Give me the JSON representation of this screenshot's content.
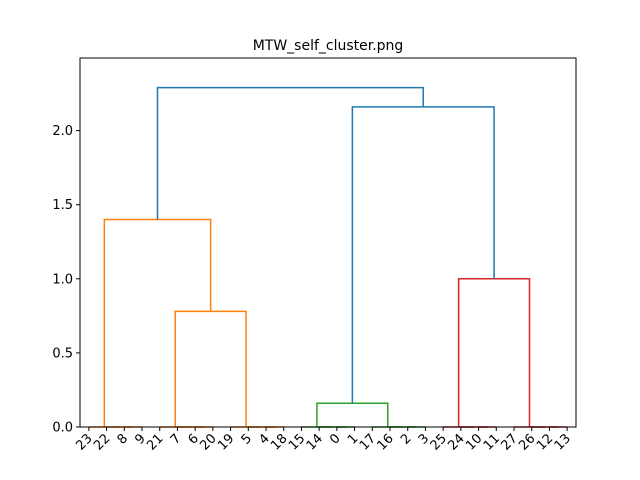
{
  "chart_data": {
    "type": "dendrogram",
    "title": "MTW_self_cluster.png",
    "ylim": [
      0,
      2.49
    ],
    "yticks": [
      {
        "value": 0,
        "label": "0.0"
      },
      {
        "value": 0.5,
        "label": "0.5"
      },
      {
        "value": 1,
        "label": "1.0"
      },
      {
        "value": 1.5,
        "label": "1.5"
      },
      {
        "value": 2,
        "label": "2.0"
      }
    ],
    "tree": {
      "height": 2.29,
      "color": "#1f77b4",
      "children": [
        {
          "height": 1.4,
          "color": "#ff7f0e",
          "children": [
            {
              "height": 0,
              "color": "#ff7f0e",
              "children": [
                {
                  "label": "23"
                },
                {
                  "height": 0,
                  "color": "#ff7f0e",
                  "children": [
                    {
                      "label": "22"
                    },
                    {
                      "height": 0,
                      "color": "#ff7f0e",
                      "children": [
                        {
                          "label": "8"
                        },
                        {
                          "label": "9"
                        }
                      ]
                    }
                  ]
                }
              ]
            },
            {
              "height": 0.78,
              "color": "#ff7f0e",
              "children": [
                {
                  "height": 0,
                  "color": "#ff7f0e",
                  "children": [
                    {
                      "label": "21"
                    },
                    {
                      "height": 0,
                      "color": "#ff7f0e",
                      "children": [
                        {
                          "label": "7"
                        },
                        {
                          "height": 0,
                          "color": "#ff7f0e",
                          "children": [
                            {
                              "label": "6"
                            },
                            {
                              "label": "20"
                            }
                          ]
                        }
                      ]
                    }
                  ]
                },
                {
                  "height": 0,
                  "color": "#ff7f0e",
                  "children": [
                    {
                      "label": "19"
                    },
                    {
                      "height": 0,
                      "color": "#ff7f0e",
                      "children": [
                        {
                          "label": "5"
                        },
                        {
                          "height": 0,
                          "color": "#ff7f0e",
                          "children": [
                            {
                              "label": "4"
                            },
                            {
                              "label": "18"
                            }
                          ]
                        }
                      ]
                    }
                  ]
                }
              ]
            }
          ]
        },
        {
          "height": 2.16,
          "color": "#1f77b4",
          "children": [
            {
              "height": 0.16,
              "color": "#2ca02c",
              "children": [
                {
                  "height": 0,
                  "color": "#2ca02c",
                  "children": [
                    {
                      "label": "15"
                    },
                    {
                      "height": 0,
                      "color": "#2ca02c",
                      "children": [
                        {
                          "label": "14"
                        },
                        {
                          "height": 0,
                          "color": "#2ca02c",
                          "children": [
                            {
                              "label": "0"
                            },
                            {
                              "label": "1"
                            }
                          ]
                        }
                      ]
                    }
                  ]
                },
                {
                  "height": 0,
                  "color": "#2ca02c",
                  "children": [
                    {
                      "label": "17"
                    },
                    {
                      "height": 0,
                      "color": "#2ca02c",
                      "children": [
                        {
                          "label": "16"
                        },
                        {
                          "height": 0,
                          "color": "#2ca02c",
                          "children": [
                            {
                              "label": "2"
                            },
                            {
                              "label": "3"
                            }
                          ]
                        }
                      ]
                    }
                  ]
                }
              ]
            },
            {
              "height": 1.0,
              "color": "#d62728",
              "children": [
                {
                  "height": 0,
                  "color": "#d62728",
                  "children": [
                    {
                      "label": "25"
                    },
                    {
                      "height": 0,
                      "color": "#d62728",
                      "children": [
                        {
                          "label": "24"
                        },
                        {
                          "height": 0,
                          "color": "#d62728",
                          "children": [
                            {
                              "label": "10"
                            },
                            {
                              "label": "11"
                            }
                          ]
                        }
                      ]
                    }
                  ]
                },
                {
                  "height": 0,
                  "color": "#d62728",
                  "children": [
                    {
                      "label": "27"
                    },
                    {
                      "height": 0,
                      "color": "#d62728",
                      "children": [
                        {
                          "label": "26"
                        },
                        {
                          "height": 0,
                          "color": "#d62728",
                          "children": [
                            {
                              "label": "12"
                            },
                            {
                              "label": "13"
                            }
                          ]
                        }
                      ]
                    }
                  ]
                }
              ]
            }
          ]
        }
      ]
    }
  }
}
